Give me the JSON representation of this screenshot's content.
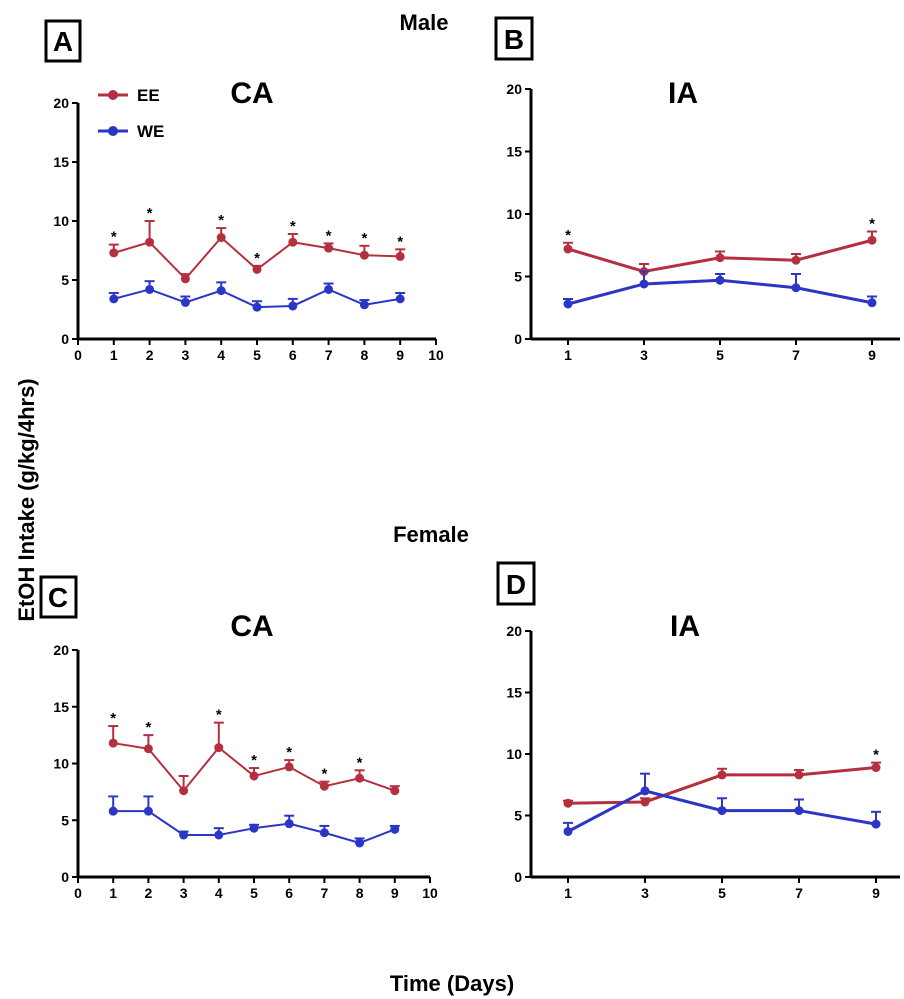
{
  "figure": {
    "male_title": "Male",
    "female_title": "Female",
    "y_axis_label": "EtOH Intake (g/kg/4hrs)",
    "x_axis_label": "Time (Days)"
  },
  "colors": {
    "EE": "#b5303f",
    "WE": "#2b36c4"
  },
  "legend": {
    "ee": "EE",
    "we": "WE"
  },
  "chart_data": [
    {
      "panel": "A",
      "title": "CA",
      "type": "line",
      "xlim": [
        0,
        10
      ],
      "ylim": [
        0,
        20
      ],
      "xticks": [
        0,
        1,
        2,
        3,
        4,
        5,
        6,
        7,
        8,
        9,
        10
      ],
      "yticks": [
        0,
        5,
        10,
        15,
        20
      ],
      "series": [
        {
          "name": "EE",
          "x": [
            1,
            2,
            3,
            4,
            5,
            6,
            7,
            8,
            9
          ],
          "values": [
            7.3,
            8.2,
            5.1,
            8.6,
            5.9,
            8.2,
            7.7,
            7.1,
            7.0
          ],
          "errors": [
            0.7,
            1.8,
            0.4,
            0.8,
            0.3,
            0.7,
            0.4,
            0.8,
            0.6
          ]
        },
        {
          "name": "WE",
          "x": [
            1,
            2,
            3,
            4,
            5,
            6,
            7,
            8,
            9
          ],
          "values": [
            3.4,
            4.2,
            3.1,
            4.1,
            2.7,
            2.8,
            4.2,
            2.9,
            3.4
          ],
          "errors": [
            0.5,
            0.7,
            0.5,
            0.7,
            0.5,
            0.6,
            0.5,
            0.4,
            0.5
          ]
        }
      ],
      "significant_x": [
        1,
        2,
        4,
        5,
        6,
        7,
        8,
        9
      ]
    },
    {
      "panel": "B",
      "title": "IA",
      "type": "line",
      "xlim": [
        0,
        10
      ],
      "ylim": [
        0,
        20
      ],
      "xticks": [
        1,
        3,
        5,
        7,
        9
      ],
      "yticks": [
        0,
        5,
        10,
        15,
        20
      ],
      "series": [
        {
          "name": "EE",
          "x": [
            1,
            3,
            5,
            7,
            9
          ],
          "values": [
            7.2,
            5.4,
            6.5,
            6.3,
            7.9
          ],
          "errors": [
            0.5,
            0.6,
            0.5,
            0.5,
            0.7
          ]
        },
        {
          "name": "WE",
          "x": [
            1,
            3,
            5,
            7,
            9
          ],
          "values": [
            2.8,
            4.4,
            4.7,
            4.1,
            2.9
          ],
          "errors": [
            0.4,
            1.0,
            0.5,
            1.1,
            0.5
          ]
        }
      ],
      "significant_x": [
        1,
        9
      ]
    },
    {
      "panel": "C",
      "title": "CA",
      "type": "line",
      "xlim": [
        0,
        10
      ],
      "ylim": [
        0,
        20
      ],
      "xticks": [
        0,
        1,
        2,
        3,
        4,
        5,
        6,
        7,
        8,
        9,
        10
      ],
      "yticks": [
        0,
        5,
        10,
        15,
        20
      ],
      "series": [
        {
          "name": "EE",
          "x": [
            1,
            2,
            3,
            4,
            5,
            6,
            7,
            8,
            9
          ],
          "values": [
            11.8,
            11.3,
            7.6,
            11.4,
            8.9,
            9.7,
            8.0,
            8.7,
            7.6
          ],
          "errors": [
            1.5,
            1.2,
            1.3,
            2.2,
            0.7,
            0.6,
            0.4,
            0.7,
            0.4
          ]
        },
        {
          "name": "WE",
          "x": [
            1,
            2,
            3,
            4,
            5,
            6,
            7,
            8,
            9
          ],
          "values": [
            5.8,
            5.8,
            3.7,
            3.7,
            4.3,
            4.7,
            3.9,
            3.0,
            4.2
          ],
          "errors": [
            1.3,
            1.3,
            0.3,
            0.6,
            0.3,
            0.7,
            0.6,
            0.4,
            0.3
          ]
        }
      ],
      "significant_x": [
        1,
        2,
        4,
        5,
        6,
        7,
        8
      ]
    },
    {
      "panel": "D",
      "title": "IA",
      "type": "line",
      "xlim": [
        0,
        10
      ],
      "ylim": [
        0,
        20
      ],
      "xticks": [
        1,
        3,
        5,
        7,
        9
      ],
      "yticks": [
        0,
        5,
        10,
        15,
        20
      ],
      "series": [
        {
          "name": "EE",
          "x": [
            1,
            3,
            5,
            7,
            9
          ],
          "values": [
            6.0,
            6.1,
            8.3,
            8.3,
            8.9
          ],
          "errors": [
            0.2,
            0.3,
            0.5,
            0.4,
            0.4
          ]
        },
        {
          "name": "WE",
          "x": [
            1,
            3,
            5,
            7,
            9
          ],
          "values": [
            3.7,
            7.0,
            5.4,
            5.4,
            4.3
          ],
          "errors": [
            0.7,
            1.4,
            1.0,
            0.9,
            1.0
          ]
        }
      ],
      "significant_x": [
        9
      ]
    }
  ]
}
